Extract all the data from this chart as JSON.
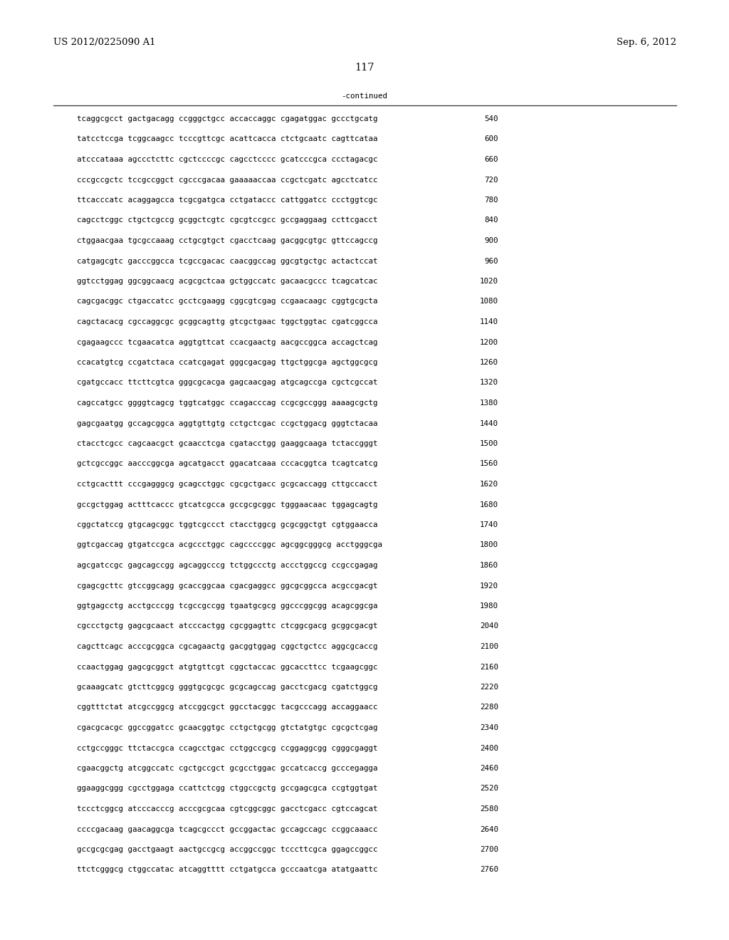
{
  "header_left": "US 2012/0225090 A1",
  "header_right": "Sep. 6, 2012",
  "page_number": "117",
  "continued_label": "-continued",
  "background_color": "#ffffff",
  "text_color": "#000000",
  "font_size_header": 9.5,
  "font_size_page": 10.5,
  "font_size_body": 7.8,
  "sequence_lines": [
    [
      "tcaggcgcct gactgacagg ccgggctgcc accaccaggc cgagatggac gccctgcatg",
      "540"
    ],
    [
      "tatcctccga tcggcaagcc tcccgttcgc acattcacca ctctgcaatc cagttcataa",
      "600"
    ],
    [
      "atcccataaa agccctcttc cgctccccgc cagcctcccc gcatcccgca ccctagacgc",
      "660"
    ],
    [
      "cccgccgctc tccgccggct cgcccgacaa gaaaaaccaa ccgctcgatc agcctcatcc",
      "720"
    ],
    [
      "ttcacccatc acaggagcca tcgcgatgca cctgataccc cattggatcc ccctggtcgc",
      "780"
    ],
    [
      "cagcctcggc ctgctcgccg gcggctcgtc cgcgtccgcc gccgaggaag ccttcgacct",
      "840"
    ],
    [
      "ctggaacgaa tgcgccaaag cctgcgtgct cgacctcaag gacggcgtgc gttccagccg",
      "900"
    ],
    [
      "catgagcgtc gacccggcca tcgccgacac caacggccag ggcgtgctgc actactccat",
      "960"
    ],
    [
      "ggtcctggag ggcggcaacg acgcgctcaa gctggccatc gacaacgccc tcagcatcac",
      "1020"
    ],
    [
      "cagcgacggc ctgaccatcc gcctcgaagg cggcgtcgag ccgaacaagc cggtgcgcta",
      "1080"
    ],
    [
      "cagctacacg cgccaggcgc gcggcagttg gtcgctgaac tggctggtac cgatcggcca",
      "1140"
    ],
    [
      "cgagaagccc tcgaacatca aggtgttcat ccacgaactg aacgccggca accagctcag",
      "1200"
    ],
    [
      "ccacatgtcg ccgatctaca ccatcgagat gggcgacgag ttgctggcga agctggcgcg",
      "1260"
    ],
    [
      "cgatgccacc ttcttcgtca gggcgcacga gagcaacgag atgcagccga cgctcgccat",
      "1320"
    ],
    [
      "cagccatgcc ggggtcagcg tggtcatggc ccagacccag ccgcgccggg aaaagcgctg",
      "1380"
    ],
    [
      "gagcgaatgg gccagcggca aggtgttgtg cctgctcgac ccgctggacg gggtctacaa",
      "1440"
    ],
    [
      "ctacctcgcc cagcaacgct gcaacctcga cgatacctgg gaaggcaaga tctaccgggt",
      "1500"
    ],
    [
      "gctcgccggc aacccggcga agcatgacct ggacatcaaa cccacggtca tcagtcatcg",
      "1560"
    ],
    [
      "cctgcacttt cccgagggcg gcagcctggc cgcgctgacc gcgcaccagg cttgccacct",
      "1620"
    ],
    [
      "gccgctggag actttcaccc gtcatcgcca gccgcgcggc tgggaacaac tggagcagtg",
      "1680"
    ],
    [
      "cggctatccg gtgcagcggc tggtcgccct ctacctggcg gcgcggctgt cgtggaacca",
      "1740"
    ],
    [
      "ggtcgaccag gtgatccgca acgccctggc cagccccggc agcggcgggcg acctgggcga",
      "1800"
    ],
    [
      "agcgatccgc gagcagccgg agcaggcccg tctggccctg accctggccg ccgccgagag",
      "1860"
    ],
    [
      "cgagcgcttc gtccggcagg gcaccggcaa cgacgaggcc ggcgcggcca acgccgacgt",
      "1920"
    ],
    [
      "ggtgagcctg acctgcccgg tcgccgccgg tgaatgcgcg ggcccggcgg acagcggcga",
      "1980"
    ],
    [
      "cgccctgctg gagcgcaact atcccactgg cgcggagttc ctcggcgacg gcggcgacgt",
      "2040"
    ],
    [
      "cagcttcagc acccgcggca cgcagaactg gacggtggag cggctgctcc aggcgcaccg",
      "2100"
    ],
    [
      "ccaactggag gagcgcggct atgtgttcgt cggctaccac ggcaccttcc tcgaagcggc",
      "2160"
    ],
    [
      "gcaaagcatc gtcttcggcg gggtgcgcgc gcgcagccag gacctcgacg cgatctggcg",
      "2220"
    ],
    [
      "cggtttctat atcgccggcg atccggcgct ggcctacggc tacgcccagg accaggaacc",
      "2280"
    ],
    [
      "cgacgcacgc ggccggatcc gcaacggtgc cctgctgcgg gtctatgtgc cgcgctcgag",
      "2340"
    ],
    [
      "cctgccgggc ttctaccgca ccagcctgac cctggccgcg ccggaggcgg cgggcgaggt",
      "2400"
    ],
    [
      "cgaacggctg atcggccatc cgctgccgct gcgcctggac gccatcaccg gcccegagga",
      "2460"
    ],
    [
      "ggaaggcggg cgcctggaga ccattctcgg ctggccgctg gccgagcgca ccgtggtgat",
      "2520"
    ],
    [
      "tccctcggcg atcccacccg acccgcgcaa cgtcggcggc gacctcgacc cgtccagcat",
      "2580"
    ],
    [
      "ccccgacaag gaacaggcga tcagcgccct gccggactac gccagccagc ccggcaaacc",
      "2640"
    ],
    [
      "gccgcgcgag gacctgaagt aactgccgcg accggccggc tcccttcgca ggagccggcc",
      "2700"
    ],
    [
      "ttctcgggcg ctggccatac atcaggtttt cctgatgcca gcccaatcga atatgaattc",
      "2760"
    ]
  ]
}
